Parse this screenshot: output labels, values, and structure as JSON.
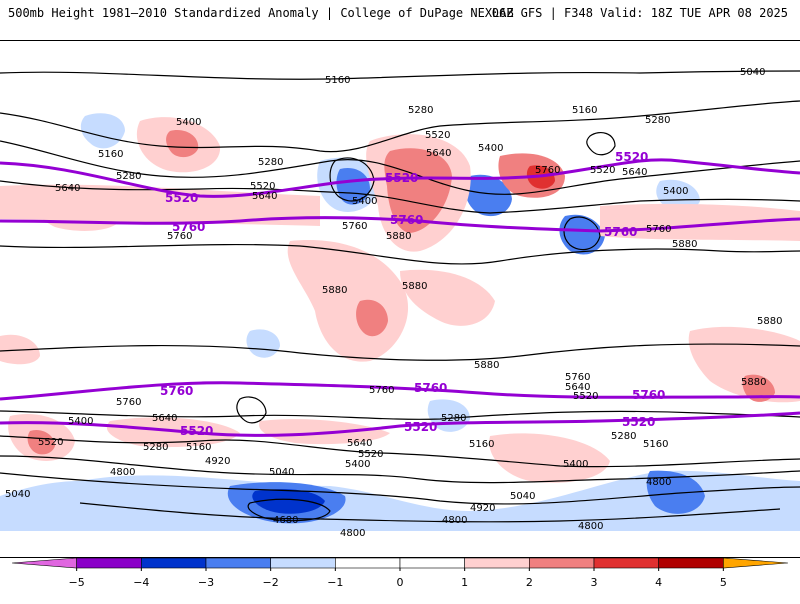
{
  "header": {
    "title_left": "500mb Height 1981–2010 Standardized Anomaly | College of DuPage NEXLAB",
    "title_right": "06Z GFS | F348 Valid: 18Z TUE APR 08 2025"
  },
  "map": {
    "contour_labels": [
      "5160",
      "5040",
      "5280",
      "5400",
      "5520",
      "5640",
      "5760",
      "5880",
      "4920",
      "4800",
      "4680"
    ],
    "purple_labels": [
      "5520",
      "5760"
    ],
    "colors": {
      "anom_neg5": "#e066e0",
      "anom_neg4": "#8a00c8",
      "anom_neg3": "#0033cc",
      "anom_neg2": "#4a7ef0",
      "anom_neg1": "#c6dcff",
      "anom_0": "#ffffff",
      "anom_pos1": "#ffd0d0",
      "anom_pos2": "#f08080",
      "anom_pos3": "#e03030",
      "anom_pos4": "#b00000",
      "anom_pos5": "#ffa500",
      "height_contour": "#000000",
      "key_contour": "#9400d3"
    }
  },
  "colorbar": {
    "ticks": [
      "−5",
      "−4",
      "−3",
      "−2",
      "−1",
      "0",
      "1",
      "2",
      "3",
      "4",
      "5"
    ],
    "colors": [
      "#e066e0",
      "#8a00c8",
      "#0033cc",
      "#4a7ef0",
      "#c6dcff",
      "#ffffff",
      "#ffffff",
      "#ffd0d0",
      "#f08080",
      "#e03030",
      "#b00000",
      "#ffa500"
    ]
  }
}
